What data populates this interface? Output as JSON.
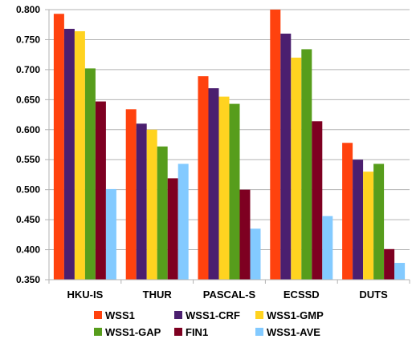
{
  "chart_data": {
    "type": "bar",
    "categories": [
      "HKU-IS",
      "THUR",
      "PASCAL-S",
      "ECSSD",
      "DUTS"
    ],
    "series": [
      {
        "name": "WSS1",
        "color": "#ff420e",
        "values": [
          0.793,
          0.634,
          0.689,
          0.8,
          0.578
        ]
      },
      {
        "name": "WSS1-CRF",
        "color": "#4b1f6f",
        "values": [
          0.768,
          0.61,
          0.669,
          0.76,
          0.55
        ]
      },
      {
        "name": "WSS1-GMP",
        "color": "#ffd320",
        "values": [
          0.764,
          0.6,
          0.655,
          0.72,
          0.53
        ]
      },
      {
        "name": "WSS1-GAP",
        "color": "#579d1c",
        "values": [
          0.702,
          0.572,
          0.643,
          0.734,
          0.543
        ]
      },
      {
        "name": "FIN1",
        "color": "#7e0021",
        "values": [
          0.647,
          0.519,
          0.5,
          0.614,
          0.401
        ]
      },
      {
        "name": "WSS1-AVE",
        "color": "#83caff",
        "values": [
          0.501,
          0.543,
          0.435,
          0.456,
          0.378
        ]
      }
    ],
    "ylim": [
      0.35,
      0.8
    ],
    "yticks": [
      "0.800",
      "0.750",
      "0.700",
      "0.650",
      "0.600",
      "0.550",
      "0.500",
      "0.450",
      "0.400",
      "0.350"
    ],
    "ytick_values": [
      0.8,
      0.75,
      0.7,
      0.65,
      0.6,
      0.55,
      0.5,
      0.45,
      0.4,
      0.35
    ],
    "grid": true,
    "legend_position": "bottom",
    "title": "",
    "xlabel": "",
    "ylabel": ""
  }
}
